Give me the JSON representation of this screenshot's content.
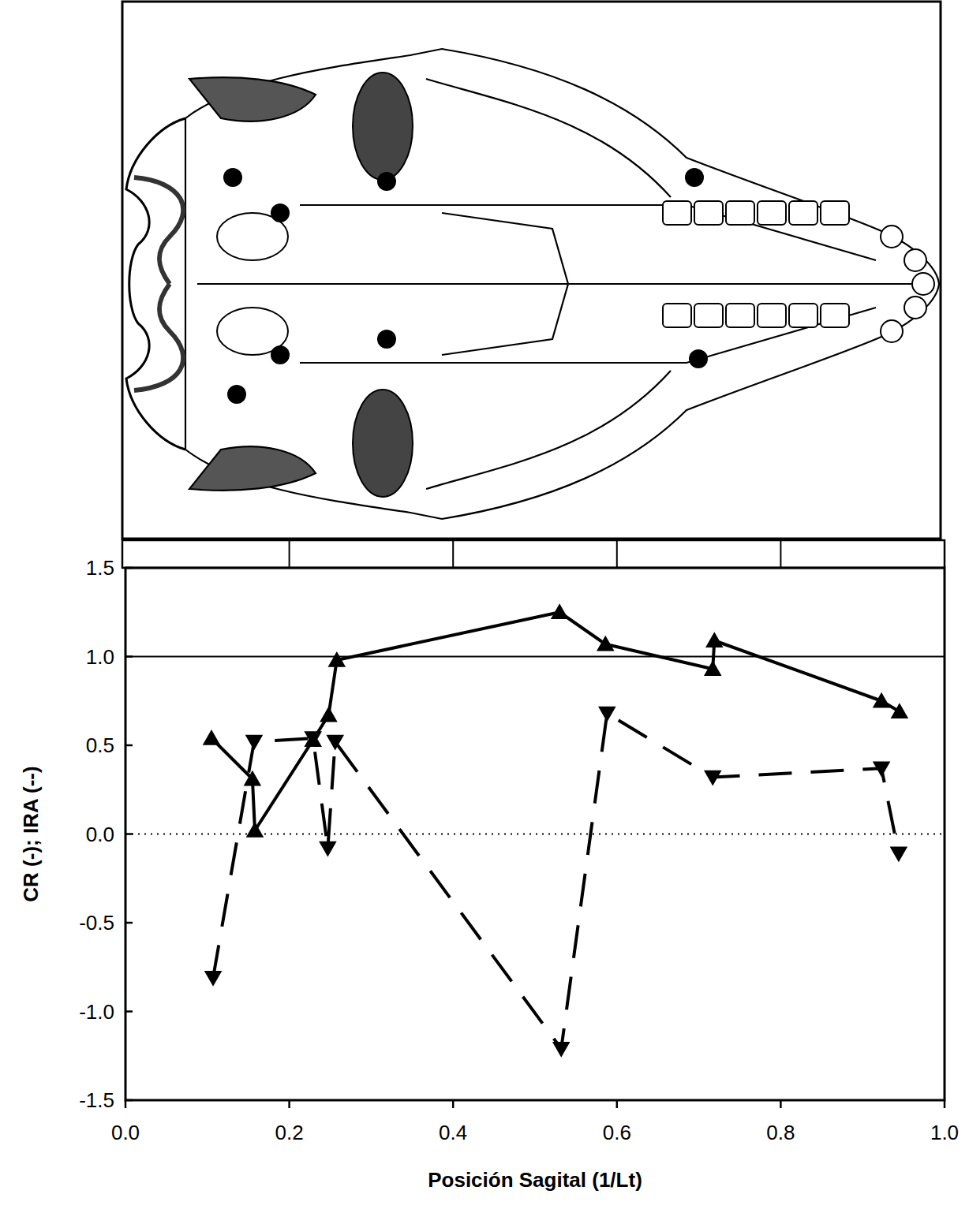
{
  "chart_data": {
    "type": "line",
    "xlabel": "Posición Sagital (1/Lt)",
    "ylabel": "CR (-); IRA (--)",
    "xlim": [
      0,
      1
    ],
    "ylim": [
      -1.5,
      1.5
    ],
    "xticks": [
      {
        "value": 0,
        "label": "0.0"
      },
      0.2,
      0.4,
      0.6,
      0.8,
      {
        "value": 1,
        "label": "1.0"
      }
    ],
    "yticks": [
      -1.5,
      {
        "value": -1,
        "label": "-1.0"
      },
      -0.5,
      {
        "value": 0,
        "label": "0.0"
      },
      0.5,
      {
        "value": 1,
        "label": "1.0"
      },
      1.5
    ],
    "grid": false,
    "reference_lines": [
      {
        "value": 1,
        "line_style": "solid"
      },
      {
        "value": 0,
        "line_style": "dotted"
      }
    ],
    "series": [
      {
        "color": "#000000",
        "marker": "triangle-up",
        "line_style": "solid",
        "x": [
          0.105,
          0.155,
          0.158,
          0.229,
          0.248,
          0.258,
          0.53,
          0.586,
          0.717,
          0.719,
          0.923,
          0.945
        ],
        "values": [
          0.54,
          0.31,
          0.02,
          0.53,
          0.67,
          0.98,
          1.25,
          1.07,
          0.93,
          1.09,
          0.75,
          0.69
        ]
      },
      {
        "color": "#000000",
        "marker": "triangle-down",
        "line_style": "dashed",
        "x": [
          0.107,
          0.157,
          0.229,
          0.247,
          0.256,
          0.532,
          0.588,
          0.717,
          0.923,
          0.944
        ],
        "values": [
          -0.81,
          0.52,
          0.54,
          -0.08,
          0.52,
          -1.21,
          0.68,
          0.32,
          0.37,
          -0.11
        ]
      }
    ]
  }
}
